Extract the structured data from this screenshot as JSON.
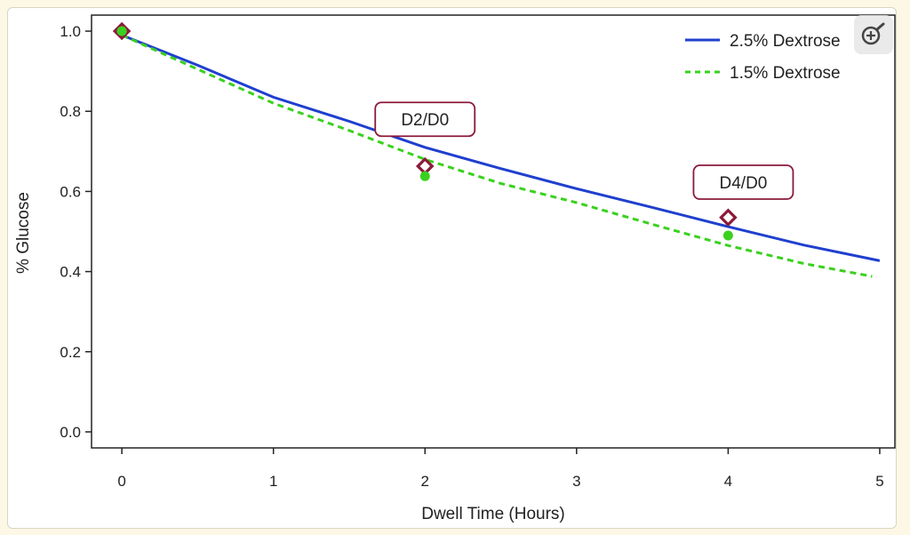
{
  "chart_data": {
    "type": "line",
    "xlabel": "Dwell Time (Hours)",
    "ylabel": "% Glucose",
    "xlim": [
      -0.2,
      5.1
    ],
    "ylim": [
      -0.04,
      1.04
    ],
    "xticks": [
      "0",
      "1",
      "2",
      "3",
      "4",
      "5"
    ],
    "yticks": [
      "0.0",
      "0.2",
      "0.4",
      "0.6",
      "0.8",
      "1.0"
    ],
    "legend_position": "top-right",
    "series": [
      {
        "name": "2.5% Dextrose",
        "style": "solid",
        "color": "#1f3fcf",
        "x": [
          0,
          0.5,
          1,
          1.5,
          2,
          2.5,
          3,
          3.5,
          4,
          4.5,
          5
        ],
        "y": [
          0.99,
          0.915,
          0.835,
          0.775,
          0.71,
          0.657,
          0.607,
          0.56,
          0.512,
          0.466,
          0.427
        ]
      },
      {
        "name": "1.5% Dextrose",
        "style": "dashed",
        "color": "#3ad11e",
        "x": [
          0,
          0.5,
          1,
          1.5,
          2,
          2.5,
          3,
          3.5,
          4,
          4.5,
          4.95
        ],
        "y": [
          0.99,
          0.905,
          0.82,
          0.752,
          0.68,
          0.62,
          0.572,
          0.518,
          0.465,
          0.42,
          0.388
        ]
      }
    ],
    "points": [
      {
        "kind": "diamond",
        "color": "#8b1a3a",
        "x": [
          0,
          2,
          4
        ],
        "y": [
          1.0,
          0.663,
          0.535
        ]
      },
      {
        "kind": "circle",
        "color": "#3ad11e",
        "x": [
          0,
          2,
          4
        ],
        "y": [
          1.0,
          0.638,
          0.49
        ]
      }
    ],
    "annotations": [
      {
        "text": "D2/D0",
        "x": 2.0,
        "y": 0.78
      },
      {
        "text": "D4/D0",
        "x": 4.1,
        "y": 0.623
      }
    ]
  },
  "ui": {
    "zoom_icon": "zoom-in-icon"
  }
}
